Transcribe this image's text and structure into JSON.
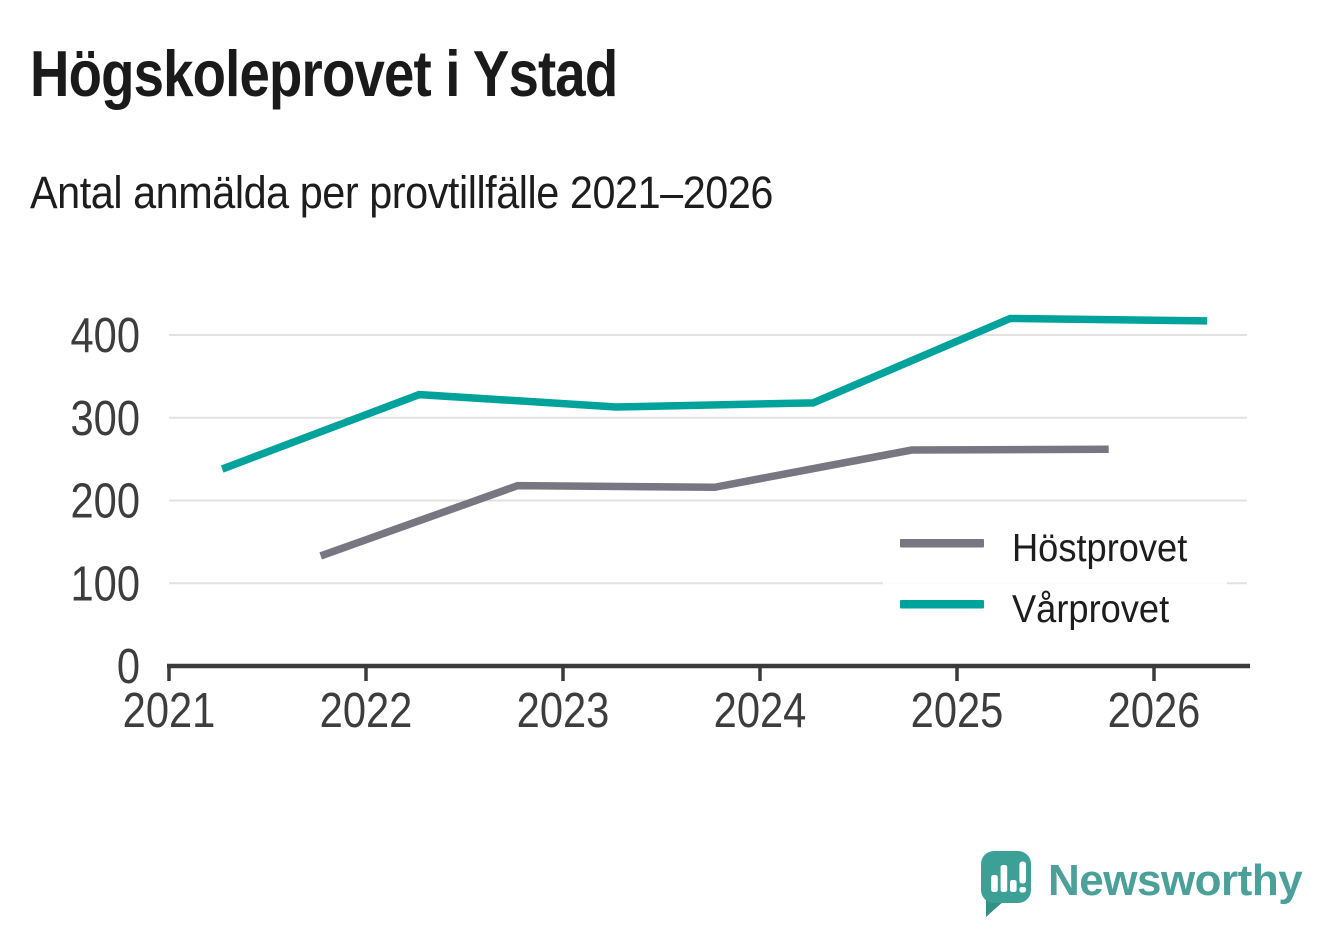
{
  "chart_data": {
    "type": "line",
    "title": "Högskoleprovet i Ystad",
    "subtitle": "Antal anmälda per provtillfälle 2021–2026",
    "x_ticks": [
      2021,
      2022,
      2023,
      2024,
      2025,
      2026
    ],
    "y_ticks": [
      0,
      100,
      200,
      300,
      400
    ],
    "xlim": [
      2021,
      2026.5
    ],
    "ylim": [
      0,
      440
    ],
    "grid": "horizontal",
    "legend_position": "inside-right",
    "series": [
      {
        "name": "Höstprovet",
        "color": "#787680",
        "x": [
          2021.77,
          2022.77,
          2023.77,
          2024.77,
          2025.77
        ],
        "values": [
          133,
          218,
          216,
          261,
          262
        ]
      },
      {
        "name": "Vårprovet",
        "color": "#00a39b",
        "x": [
          2021.27,
          2022.27,
          2023.27,
          2024.27,
          2025.27,
          2026.27
        ],
        "values": [
          238,
          328,
          313,
          318,
          420,
          417
        ]
      }
    ]
  },
  "legend": {
    "items": [
      {
        "label": "Höstprovet",
        "color": "#787680"
      },
      {
        "label": "Vårprovet",
        "color": "#00a39b"
      }
    ]
  },
  "logo": {
    "wordmark": "Newsworthy",
    "icon": "newsworthy-speech-bubble-bar-chart-icon",
    "bubble_color": "#3da096",
    "tail_color": "#35908a",
    "wordmark_color": "#4ba09a"
  },
  "colors": {
    "background": "#ffffff",
    "gridline": "#e2e2e2",
    "axis": "#3a3a3a",
    "tick_label": "#3d3d3d",
    "title": "#1a1a1a",
    "legend_text": "#1d1d1d"
  }
}
